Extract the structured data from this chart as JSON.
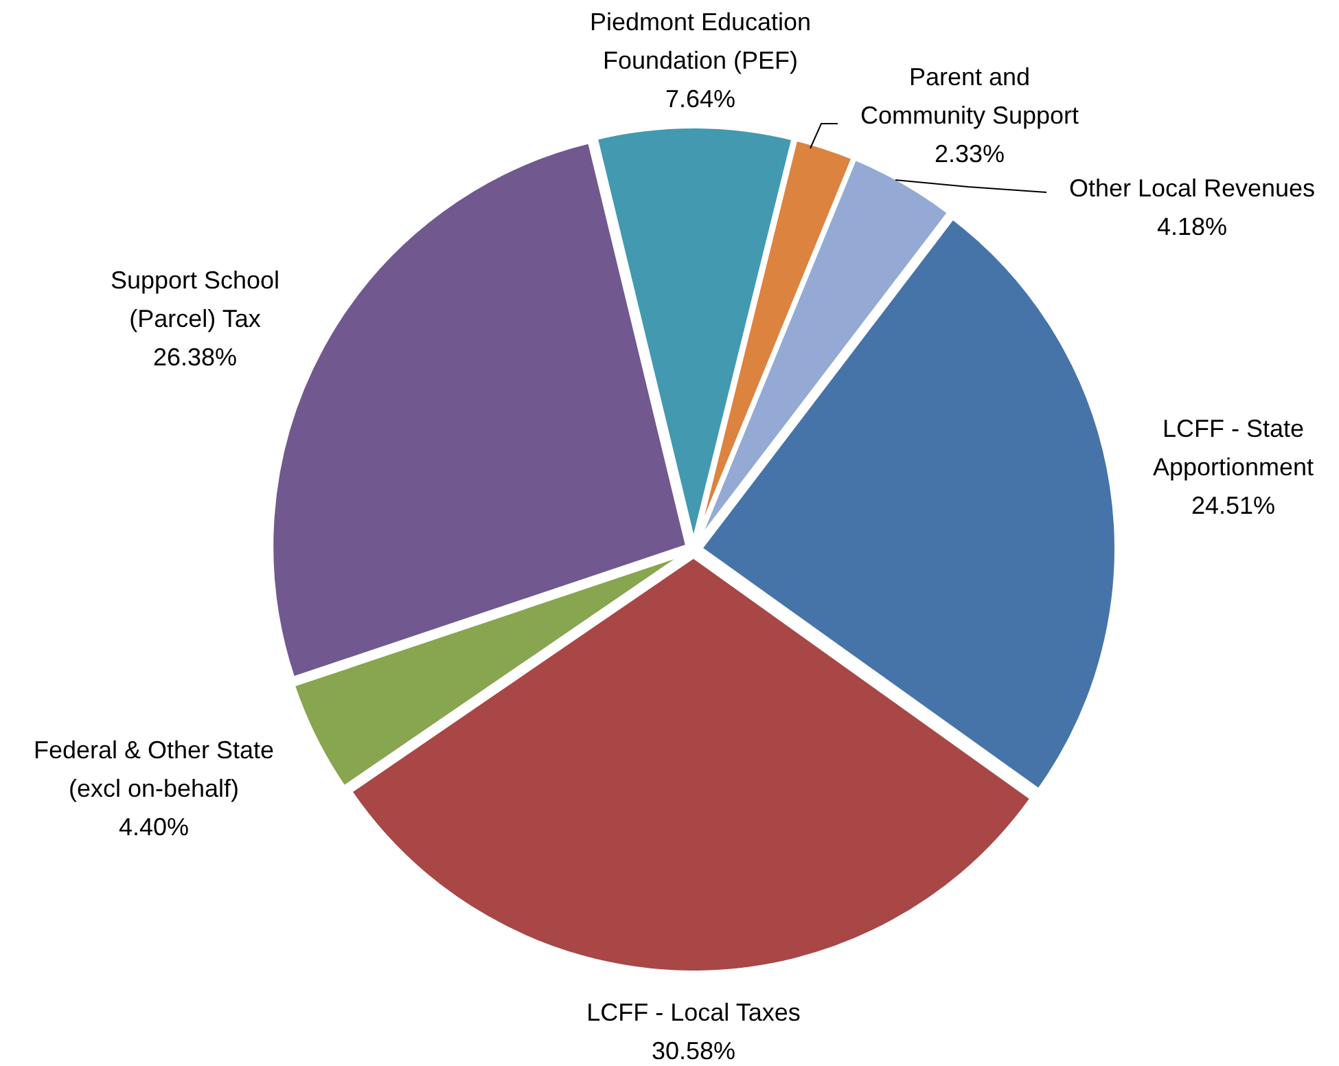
{
  "chart_data": {
    "type": "pie",
    "categories": [
      "Piedmont Education Foundation (PEF)",
      "Parent and Community Support",
      "Other Local Revenues",
      "LCFF - State Apportionment",
      "LCFF - Local Taxes",
      "Federal & Other State (excl on-behalf)",
      "Support School (Parcel) Tax"
    ],
    "values": [
      7.64,
      2.33,
      4.18,
      24.51,
      30.58,
      4.4,
      26.38
    ],
    "value_labels": [
      "7.64%",
      "2.33%",
      "4.18%",
      "24.51%",
      "30.58%",
      "4.40%",
      "26.38%"
    ],
    "colors": [
      "#4299b0",
      "#dc8340",
      "#94aad4",
      "#4674a8",
      "#a94646",
      "#88a54f",
      "#71588f"
    ]
  }
}
